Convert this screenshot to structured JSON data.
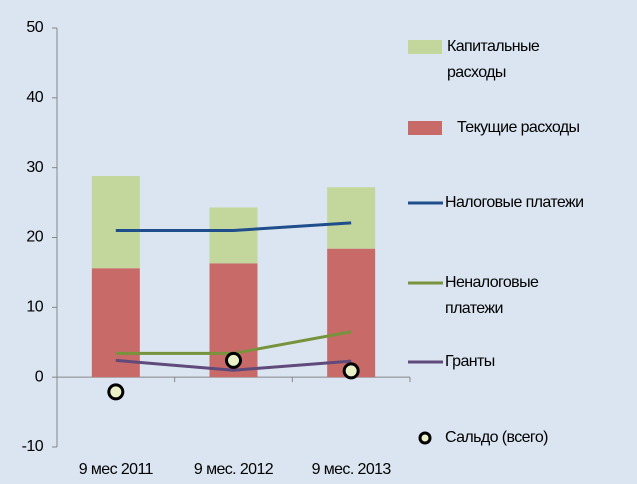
{
  "chart_data": {
    "type": "bar",
    "categories": [
      "9 мес 2011",
      "9 мес. 2012",
      "9 мес. 2013"
    ],
    "ylim": [
      -10,
      50
    ],
    "yticks": [
      -10,
      0,
      10,
      20,
      30,
      40,
      50
    ],
    "series": [
      {
        "name": "Капитальные расходы",
        "type": "bar",
        "stack": "top",
        "color": "#c3d69b",
        "values": [
          13.2,
          8.0,
          8.8
        ]
      },
      {
        "name": "Текущие расходы",
        "type": "bar",
        "stack": "base",
        "color": "#c86a68",
        "values": [
          15.6,
          16.3,
          18.4
        ]
      },
      {
        "name": "Налоговые платежи",
        "type": "line",
        "color": "#1f4e8c",
        "values": [
          21.0,
          21.0,
          22.1
        ]
      },
      {
        "name": "Неналоговые платежи",
        "type": "line",
        "color": "#77933c",
        "values": [
          3.4,
          3.4,
          6.5
        ]
      },
      {
        "name": "Гранты",
        "type": "line",
        "color": "#604a7b",
        "values": [
          2.4,
          1.0,
          2.3
        ]
      },
      {
        "name": "Сальдо (всего)",
        "type": "scatter",
        "color": "#ebf1c6",
        "values": [
          -2.1,
          2.4,
          0.9
        ]
      }
    ]
  }
}
